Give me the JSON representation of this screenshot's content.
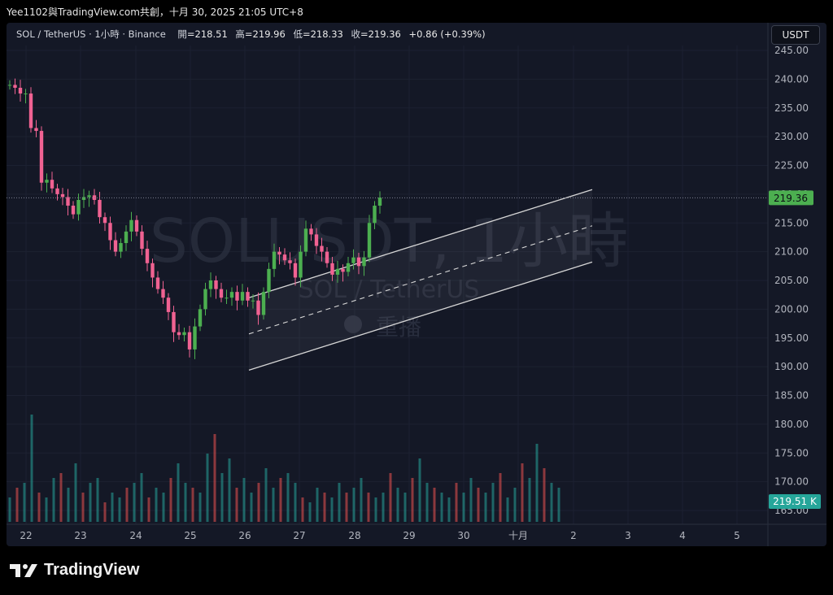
{
  "header": {
    "caption": "Yee1102與TradingView.com共創，十月 30, 2025 21:05 UTC+8"
  },
  "legend": {
    "symbol": "SOL / TetherUS · 1小時 · Binance",
    "open_label": "開",
    "open": "=218.51",
    "high_label": "高",
    "high": "=219.96",
    "low_label": "低",
    "low": "=218.33",
    "close_label": "收",
    "close": "=219.36",
    "change": "+0.86 (+0.39%)"
  },
  "currency_button": "USDT",
  "watermark": {
    "main": "SOLUSDT, 1小時",
    "sub": "SOL / TetherUS",
    "replay": "重播"
  },
  "footer": {
    "brand": "TradingView"
  },
  "colors": {
    "up": "#26a69a",
    "down": "#ef5350",
    "candle_up": "#4caf50",
    "candle_down": "#f06292",
    "price_badge": "#4caf50",
    "volume_badge": "#26a69a",
    "channel": "#d6d6d6"
  },
  "chart_data": {
    "type": "candlestick",
    "title": "SOL / TetherUS · 1小時 · Binance",
    "ylim": [
      163,
      247
    ],
    "y_ticks": [
      "245.00",
      "240.00",
      "235.00",
      "230.00",
      "225.00",
      "220.00",
      "215.00",
      "210.00",
      "205.00",
      "200.00",
      "195.00",
      "190.00",
      "185.00",
      "180.00",
      "175.00",
      "170.00",
      "165.00"
    ],
    "x_ticks": [
      "22",
      "23",
      "24",
      "25",
      "26",
      "27",
      "28",
      "29",
      "30",
      "十月",
      "2",
      "3",
      "4",
      "5"
    ],
    "last_price": "219.36",
    "last_volume": "219.51 K",
    "price_path": [
      [
        0,
        239
      ],
      [
        1.5,
        238.5
      ],
      [
        3,
        237.5
      ],
      [
        4.5,
        237.5
      ],
      [
        6,
        231.5
      ],
      [
        7.5,
        231
      ],
      [
        9,
        222
      ],
      [
        10.5,
        222.5
      ],
      [
        12,
        221
      ],
      [
        13.5,
        220
      ],
      [
        15,
        219.5
      ],
      [
        16.5,
        218
      ],
      [
        18,
        216.5
      ],
      [
        19.5,
        219
      ],
      [
        21,
        219.5
      ],
      [
        22.5,
        219.8
      ],
      [
        24,
        219
      ],
      [
        25.5,
        216
      ],
      [
        27,
        215
      ],
      [
        28.5,
        212
      ],
      [
        30,
        210
      ],
      [
        31.5,
        211.5
      ],
      [
        33,
        213.5
      ],
      [
        34.5,
        215.5
      ],
      [
        36,
        213.5
      ],
      [
        37.5,
        210.5
      ],
      [
        39,
        208
      ],
      [
        40.5,
        205.5
      ],
      [
        42,
        203.5
      ],
      [
        43.5,
        202
      ],
      [
        45,
        199.5
      ],
      [
        46.5,
        196
      ],
      [
        48,
        195.5
      ],
      [
        49.5,
        196
      ],
      [
        51,
        193
      ],
      [
        52.5,
        197
      ],
      [
        54,
        200
      ],
      [
        55.5,
        203.5
      ],
      [
        57,
        205
      ],
      [
        58.5,
        203.5
      ],
      [
        60,
        202
      ],
      [
        61.5,
        202
      ],
      [
        63,
        203
      ],
      [
        64.5,
        201.5
      ],
      [
        66,
        203
      ],
      [
        67.5,
        201.5
      ],
      [
        69,
        201.5
      ],
      [
        70.5,
        199
      ],
      [
        72,
        203
      ],
      [
        73.5,
        207
      ],
      [
        75,
        210
      ],
      [
        76.5,
        209.5
      ],
      [
        78,
        208.5
      ],
      [
        79.5,
        208
      ],
      [
        81,
        205.5
      ],
      [
        82.5,
        210
      ],
      [
        84,
        214
      ],
      [
        85.5,
        213
      ],
      [
        87,
        211
      ],
      [
        88.5,
        210
      ],
      [
        90,
        208
      ],
      [
        91.5,
        206
      ],
      [
        93,
        207
      ],
      [
        94.5,
        206.5
      ],
      [
        96,
        208
      ],
      [
        97.5,
        209
      ],
      [
        99,
        207.5
      ],
      [
        100.5,
        209
      ],
      [
        102,
        215
      ],
      [
        103.5,
        218
      ],
      [
        105,
        219.4
      ]
    ],
    "volume_estimates": [
      5,
      7,
      8,
      22,
      6,
      5,
      9,
      10,
      7,
      12,
      6,
      8,
      9,
      4,
      6,
      5,
      7,
      8,
      10,
      5,
      7,
      6,
      9,
      12,
      8,
      7,
      6,
      14,
      18,
      10,
      13,
      7,
      9,
      6,
      8,
      11,
      7,
      9,
      10,
      8,
      5,
      4,
      7,
      6,
      5,
      8,
      6,
      7,
      9,
      6,
      5,
      6,
      10,
      7,
      6,
      9,
      13,
      8,
      7,
      6,
      5,
      8,
      6,
      9,
      7,
      6,
      8,
      10,
      5,
      7,
      12,
      9,
      16,
      11,
      8,
      7
    ],
    "channel": {
      "upper": [
        [
          26.05,
          202
        ],
        [
          28.2,
          214
        ]
      ],
      "lower": [
        [
          26.05,
          190
        ],
        [
          28.2,
          202
        ]
      ],
      "x_range_hours": [
        0,
        60
      ]
    }
  }
}
